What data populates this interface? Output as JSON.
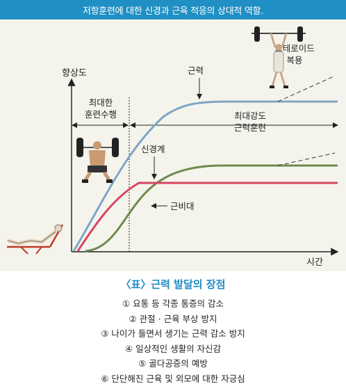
{
  "header": {
    "title": "저항훈련에 대한 신경과 근육 적응의 상대적 역할."
  },
  "chart_data": {
    "type": "line",
    "ylabel": "향상도",
    "xlabel": "시간",
    "series": [
      {
        "name": "근력",
        "color": "#7fa6c6"
      },
      {
        "name": "신경계",
        "color": "#d64560"
      },
      {
        "name": "근비대",
        "color": "#6e8a4e"
      }
    ],
    "phases": [
      {
        "label_line1": "최대한",
        "label_line2": "훈련수행"
      },
      {
        "label_line1": "최대강도",
        "label_line2": "근력훈련"
      }
    ],
    "annotation": {
      "line1": "스테로이드",
      "line2": "복용"
    }
  },
  "caption": {
    "title": "〈표〉근력 발달의 장점",
    "items": [
      "① 요통 등 각종 통증의 감소",
      "② 관절 · 근육 부상 방지",
      "③ 나이가 들면서 생기는 근력 감소 방지",
      "④ 일상적인 생활의 자신감",
      "⑤ 골다공증의 예방",
      "⑥ 단단해진 근육 및 외모에 대한 자긍심"
    ]
  }
}
